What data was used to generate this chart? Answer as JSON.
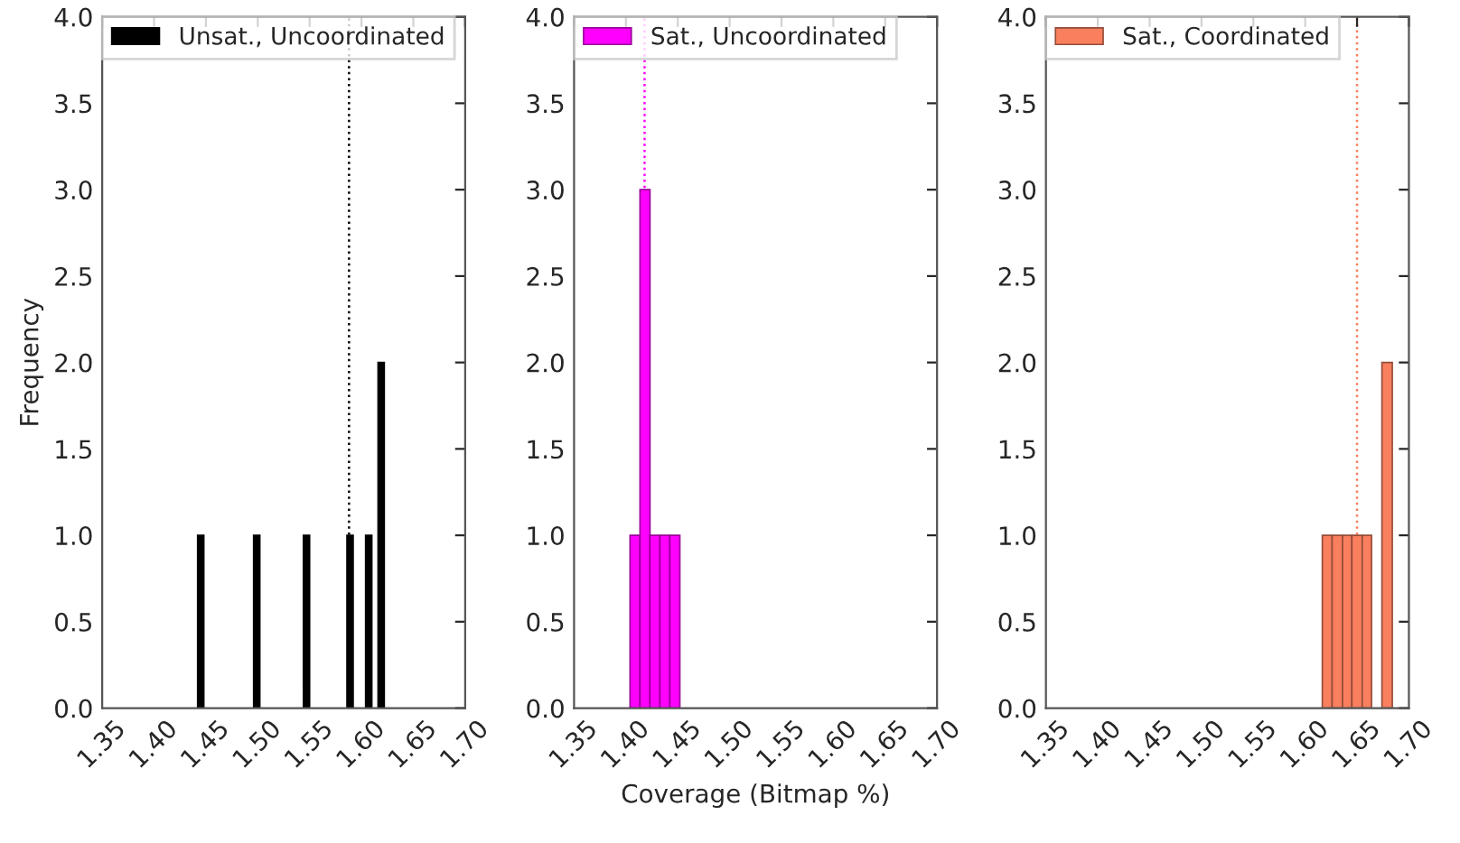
{
  "chart_data": [
    {
      "type": "histogram",
      "ylabel": "Frequency",
      "bins": [
        1.442,
        1.448,
        1.454,
        1.46,
        1.466,
        1.472,
        1.478,
        1.484,
        1.49,
        1.496,
        1.502,
        1.508,
        1.514,
        1.52,
        1.526,
        1.532,
        1.538,
        1.544,
        1.55,
        1.556,
        1.562,
        1.568,
        1.574,
        1.58,
        1.586,
        1.592,
        1.598,
        1.604,
        1.61,
        1.616,
        1.622
      ],
      "series": [
        {
          "name": "Unsat., Uncoordinated",
          "color": "#000000",
          "values": [
            1,
            0,
            0,
            0,
            0,
            0,
            0,
            0,
            0,
            1,
            0,
            0,
            0,
            0,
            0,
            0,
            0,
            1,
            0,
            0,
            0,
            0,
            0,
            0,
            1,
            0,
            0,
            1,
            0,
            2
          ]
        }
      ],
      "ref_lines": [
        {
          "axis": "x",
          "value": 1.588,
          "color": "#000000",
          "line_style": "dotted"
        }
      ],
      "xlim": [
        1.35,
        1.7
      ],
      "xticks": [
        1.35,
        {
          "value": 1.4,
          "label": "1.40"
        },
        1.45,
        {
          "value": 1.5,
          "label": "1.50"
        },
        1.55,
        {
          "value": 1.6,
          "label": "1.60"
        },
        1.65,
        {
          "value": 1.7,
          "label": "1.70"
        }
      ],
      "ylim": [
        0.0,
        4.0
      ],
      "yticks": [
        {
          "value": 0,
          "label": "0.0"
        },
        0.5,
        {
          "value": 1,
          "label": "1.0"
        },
        1.5,
        {
          "value": 2,
          "label": "2.0"
        },
        2.5,
        {
          "value": 3,
          "label": "3.0"
        },
        3.5,
        {
          "value": 4,
          "label": "4.0"
        }
      ],
      "legend": "top left",
      "grid": false
    },
    {
      "type": "histogram",
      "xlabel": "Coverage (Bitmap %)",
      "bins": [
        1.404,
        1.4136,
        1.4232,
        1.4328,
        1.4424,
        1.452
      ],
      "series": [
        {
          "name": "Sat., Uncoordinated",
          "color": "#ff00ff",
          "values": [
            1,
            3,
            1,
            1,
            1
          ]
        }
      ],
      "ref_lines": [
        {
          "axis": "x",
          "value": 1.418,
          "color": "#ff00ff",
          "line_style": "dotted"
        }
      ],
      "xlim": [
        1.35,
        1.7
      ],
      "xticks": [
        1.35,
        {
          "value": 1.4,
          "label": "1.40"
        },
        1.45,
        {
          "value": 1.5,
          "label": "1.50"
        },
        1.55,
        {
          "value": 1.6,
          "label": "1.60"
        },
        1.65,
        {
          "value": 1.7,
          "label": "1.70"
        }
      ],
      "ylim": [
        0.0,
        4.0
      ],
      "yticks": [
        {
          "value": 0,
          "label": "0.0"
        },
        0.5,
        {
          "value": 1,
          "label": "1.0"
        },
        1.5,
        {
          "value": 2,
          "label": "2.0"
        },
        2.5,
        {
          "value": 3,
          "label": "3.0"
        },
        3.5,
        {
          "value": 4,
          "label": "4.0"
        }
      ],
      "legend": "top left",
      "grid": false
    },
    {
      "type": "histogram",
      "bins": [
        1.6165,
        1.626,
        1.636,
        1.645,
        1.655,
        1.664,
        1.674,
        1.684
      ],
      "series": [
        {
          "name": "Sat., Coordinated",
          "color": "#f97f5f",
          "values": [
            1,
            1,
            1,
            1,
            1,
            0,
            2
          ]
        }
      ],
      "ref_lines": [
        {
          "axis": "x",
          "value": 1.65,
          "color": "#f97f5f",
          "line_style": "dotted"
        }
      ],
      "xlim": [
        1.35,
        1.7
      ],
      "xticks": [
        1.35,
        {
          "value": 1.4,
          "label": "1.40"
        },
        1.45,
        {
          "value": 1.5,
          "label": "1.50"
        },
        1.55,
        {
          "value": 1.6,
          "label": "1.60"
        },
        1.65,
        {
          "value": 1.7,
          "label": "1.70"
        }
      ],
      "ylim": [
        0.0,
        4.0
      ],
      "yticks": [
        {
          "value": 0,
          "label": "0.0"
        },
        0.5,
        {
          "value": 1,
          "label": "1.0"
        },
        1.5,
        {
          "value": 2,
          "label": "2.0"
        },
        2.5,
        {
          "value": 3,
          "label": "3.0"
        },
        3.5,
        {
          "value": 4,
          "label": "4.0"
        }
      ],
      "legend": "top left",
      "grid": false
    }
  ]
}
